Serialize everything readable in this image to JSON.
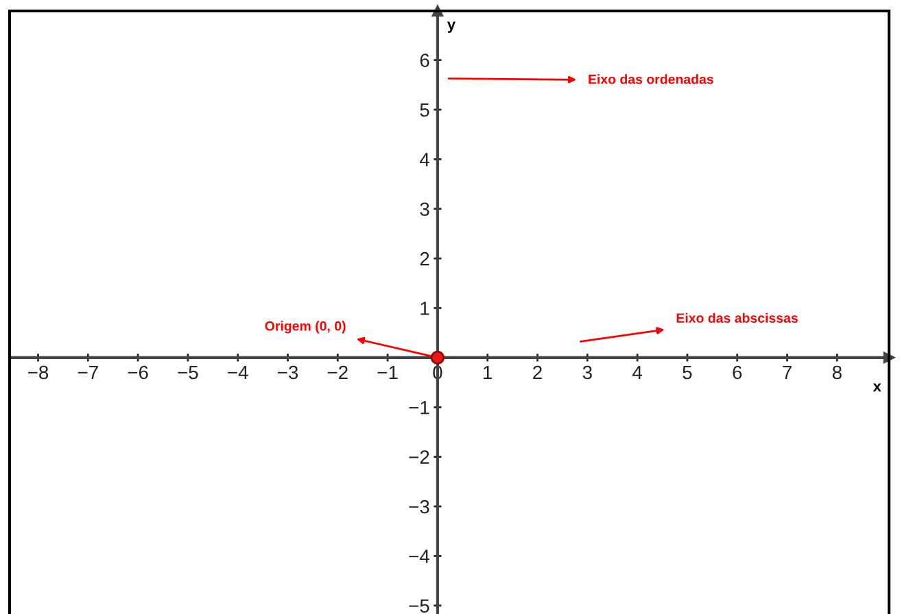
{
  "chart_data": {
    "type": "scatter",
    "xlabel": "x",
    "ylabel": "y",
    "x": [
      0
    ],
    "values": [
      0
    ],
    "color": "#e31a1c",
    "marker": "circle",
    "xlim": [
      -8.57,
      9.04
    ],
    "ylim": [
      -5.17,
      6.99
    ],
    "xticks": [
      {
        "value": -8,
        "label": "−8"
      },
      {
        "value": -7,
        "label": "−7"
      },
      {
        "value": -6,
        "label": "−6"
      },
      {
        "value": -5,
        "label": "−5"
      },
      {
        "value": -4,
        "label": "−4"
      },
      {
        "value": -3,
        "label": "−3"
      },
      {
        "value": -2,
        "label": "−2"
      },
      {
        "value": -1,
        "label": "−1"
      },
      0,
      1,
      2,
      3,
      4,
      5,
      6,
      7,
      8
    ],
    "yticks": [
      {
        "value": -5,
        "label": "−5"
      },
      {
        "value": -4,
        "label": "−4"
      },
      {
        "value": -3,
        "label": "−3"
      },
      {
        "value": -2,
        "label": "−2"
      },
      {
        "value": -1,
        "label": "−1"
      },
      1,
      2,
      3,
      4,
      5,
      6
    ],
    "grid": false,
    "annotations": [
      "Eixo das ordenadas",
      "Eixo das abscissas",
      {
        "text": "Origem (0, 0)",
        "x": 0,
        "y": 0
      }
    ]
  }
}
